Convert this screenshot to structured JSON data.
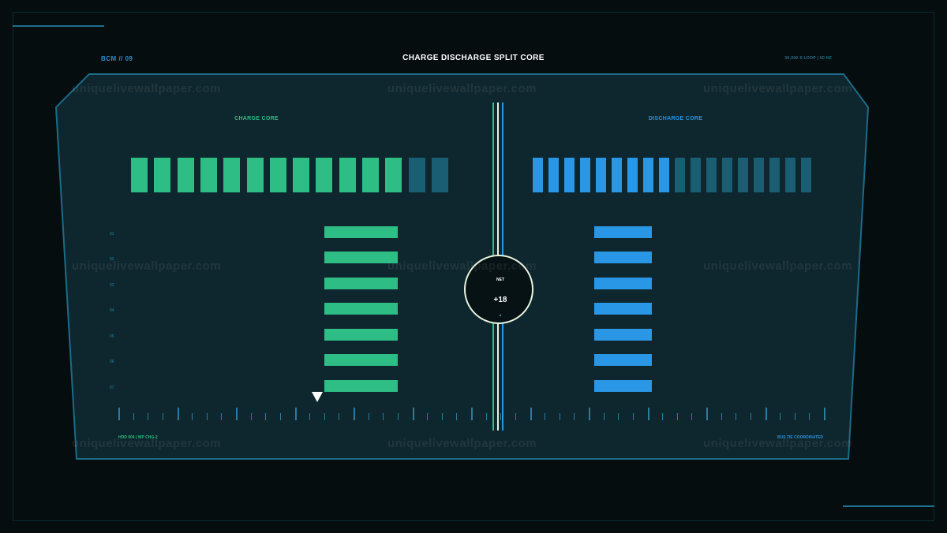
{
  "header": {
    "left_code": "BCM // 09",
    "title": "CHARGE DISCHARGE SPLIT CORE",
    "right_info": "30,000 S LOOP | 60 HZ"
  },
  "charge_core": {
    "title": "CHARGE CORE",
    "segments_total": 14,
    "segments_lit": 12,
    "lit_fraction": 0.857,
    "color": "#2ebd84",
    "dim_color": "#195e73"
  },
  "discharge_core": {
    "title": "DISCHARGE CORE",
    "segments_total": 18,
    "segments_lit": 9,
    "lit_fraction": 0.5,
    "color": "#2a96e6",
    "dim_color": "#195e73"
  },
  "row_labels": [
    "01",
    "02",
    "03",
    "04",
    "05",
    "06",
    "07"
  ],
  "net": {
    "label": "NET",
    "value": "+18",
    "arrow": "▲"
  },
  "footer": {
    "left": "HDD 004 | WP CHG-2",
    "right": "BUS TIE COORDINATED"
  },
  "watermark": "uniquelivewallpaper.com",
  "colors": {
    "background": "#050d0f",
    "panel": "#0e262d",
    "panel_border": "#1c6b87",
    "charge": "#2ebd84",
    "discharge": "#2a96e6",
    "ring": "#e8f3e0"
  }
}
